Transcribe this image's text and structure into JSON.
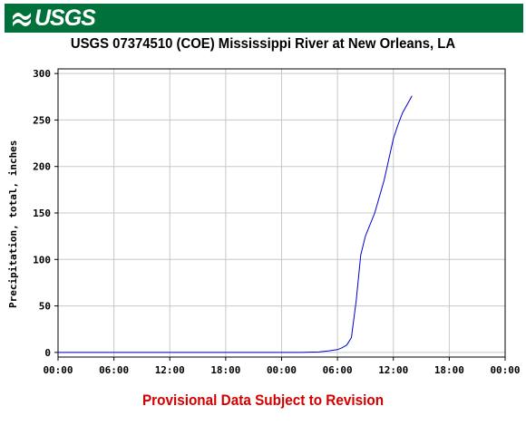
{
  "banner": {
    "logo_text": "USGS",
    "color": "#00713b"
  },
  "chart_data": {
    "type": "line",
    "title": "USGS 07374510 (COE) Mississippi River at New Orleans, LA",
    "ylabel": "Precipitation, total, inches",
    "xlabel": "",
    "x_tick_labels": [
      "00:00",
      "06:00",
      "12:00",
      "18:00",
      "00:00",
      "06:00",
      "12:00",
      "18:00",
      "00:00"
    ],
    "x_range_hours": [
      0,
      48
    ],
    "y_ticks": [
      0,
      50,
      100,
      150,
      200,
      250,
      300
    ],
    "ylim": [
      -5,
      305
    ],
    "grid": true,
    "line_color": "#0000cc",
    "series": [
      {
        "x_hours": [
          0,
          6,
          12,
          18,
          24,
          26,
          28,
          29,
          30,
          30.5,
          31,
          31.5,
          32,
          32.5,
          33,
          34,
          35,
          36,
          36.5,
          37,
          37.5,
          38
        ],
        "values": [
          0,
          0,
          0,
          0,
          0,
          0,
          0.5,
          1.5,
          3,
          5,
          8,
          16,
          55,
          105,
          125,
          150,
          185,
          230,
          245,
          258,
          267,
          276
        ]
      }
    ]
  },
  "footer": {
    "text": "Provisional Data Subject to Revision",
    "color": "#d40000"
  }
}
